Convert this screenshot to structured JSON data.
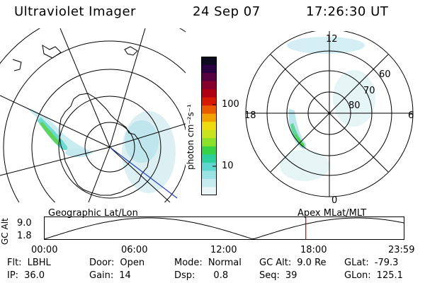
{
  "header": {
    "title": "Ultraviolet Imager",
    "date": "24 Sep 07",
    "time": "17:26:30 UT"
  },
  "colorbar": {
    "label": "photon cm⁻²s⁻¹",
    "ticks": [
      "100",
      "10"
    ],
    "colors": [
      "#e9f5f7",
      "#c6ecef",
      "#9ae2e6",
      "#5fd6cf",
      "#2dcf9b",
      "#37d246",
      "#8be02a",
      "#c8e41e",
      "#eddc10",
      "#f1a200",
      "#ea5c00",
      "#d51a00",
      "#b00013",
      "#86002e",
      "#55003f",
      "#2a0040",
      "#0b0b1f"
    ]
  },
  "mlt_plot": {
    "labels": [
      "12",
      "18",
      "6",
      "0"
    ],
    "lat_labels": [
      "60",
      "70",
      "80"
    ]
  },
  "alt_plot": {
    "ylabel": "GC Alt",
    "y_ticks": [
      "9.0",
      "1.8"
    ],
    "left_label": "Geographic Lat/Lon",
    "right_label": "Apex MLat/MLT",
    "x_ticks": [
      "00:00",
      "06:00",
      "12:00",
      "18:00",
      "23:59"
    ],
    "marker_color": "#cc0000"
  },
  "info": {
    "flt": {
      "k": "Flt:",
      "v": "LBHL"
    },
    "ip": {
      "k": "IP:",
      "v": "36.0"
    },
    "door": {
      "k": "Door:",
      "v": "Open"
    },
    "gain": {
      "k": "Gain:",
      "v": "14"
    },
    "mode": {
      "k": "Mode:",
      "v": "Normal"
    },
    "dsp": {
      "k": "Dsp:",
      "v": "0.8"
    },
    "gcalt": {
      "k": "GC Alt:",
      "v": "9.0 Re"
    },
    "seq": {
      "k": "Seq:",
      "v": "39"
    },
    "glat": {
      "k": "GLat:",
      "v": "-79.3"
    },
    "glon": {
      "k": "GLon:",
      "v": "125.1"
    }
  }
}
